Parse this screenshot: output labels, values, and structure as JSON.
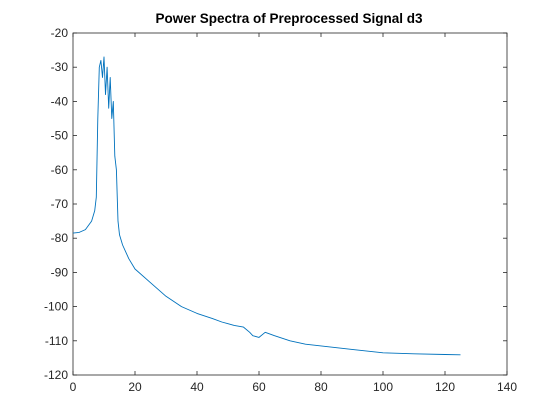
{
  "chart_data": {
    "type": "line",
    "title": "Power Spectra of Preprocessed Signal d3",
    "xlabel": "",
    "ylabel": "",
    "xlim": [
      0,
      140
    ],
    "ylim": [
      -120,
      -20
    ],
    "xticks": [
      "0",
      "20",
      "40",
      "60",
      "80",
      "100",
      "120",
      "140"
    ],
    "yticks": [
      "-20",
      "-30",
      "-40",
      "-50",
      "-60",
      "-70",
      "-80",
      "-90",
      "-100",
      "-110",
      "-120"
    ],
    "grid": false,
    "series_color": "#0072BD",
    "series": [
      {
        "x": [
          0,
          2,
          4,
          6,
          7,
          7.5,
          8,
          8.5,
          9,
          9.5,
          10,
          10.5,
          11,
          11.5,
          12,
          12.5,
          13,
          13.5,
          14,
          14.5,
          15,
          16,
          18,
          20,
          25,
          30,
          35,
          40,
          45,
          48,
          50,
          52,
          55,
          57,
          58,
          60,
          62,
          65,
          70,
          75,
          80,
          90,
          100,
          110,
          120,
          125
        ],
        "y": [
          -78.5,
          -78.3,
          -77.5,
          -75,
          -72,
          -68,
          -45,
          -30,
          -28,
          -33,
          -27,
          -38,
          -30,
          -42,
          -33,
          -45,
          -40,
          -56,
          -60,
          -75,
          -79,
          -82,
          -86,
          -89,
          -93,
          -97,
          -100,
          -102,
          -103.5,
          -104.5,
          -105,
          -105.5,
          -106,
          -107.5,
          -108.5,
          -109,
          -107.5,
          -108.5,
          -110,
          -111,
          -111.5,
          -112.5,
          -113.5,
          -113.8,
          -114,
          -114.1
        ]
      }
    ]
  }
}
